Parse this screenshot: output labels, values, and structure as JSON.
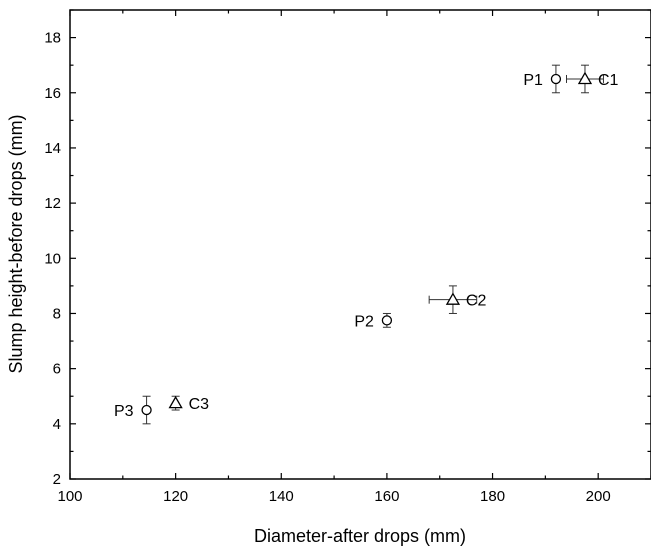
{
  "chart_data": {
    "type": "scatter",
    "xlabel": "Diameter-after drops (mm)",
    "ylabel": "Slump height-before drops (mm)",
    "xlim": [
      100,
      210
    ],
    "ylim": [
      2,
      19
    ],
    "x_ticks": [
      100,
      120,
      140,
      160,
      180,
      200
    ],
    "y_ticks": [
      2,
      4,
      6,
      8,
      10,
      12,
      14,
      16,
      18
    ],
    "grid": false,
    "points": [
      {
        "label": "P1",
        "marker": "circle",
        "x": 192,
        "y": 16.5,
        "xerr": 0,
        "yerr": 0.5,
        "label_side": "left"
      },
      {
        "label": "C1",
        "marker": "triangle",
        "x": 197.5,
        "y": 16.5,
        "xerr": 3.5,
        "yerr": 0.5,
        "label_side": "right"
      },
      {
        "label": "P2",
        "marker": "circle",
        "x": 160,
        "y": 7.75,
        "xerr": 0,
        "yerr": 0.25,
        "label_side": "left"
      },
      {
        "label": "C2",
        "marker": "triangle",
        "x": 172.5,
        "y": 8.5,
        "xerr": 4.5,
        "yerr": 0.5,
        "label_side": "right"
      },
      {
        "label": "P3",
        "marker": "circle",
        "x": 114.5,
        "y": 4.5,
        "xerr": 0,
        "yerr": 0.5,
        "label_side": "left"
      },
      {
        "label": "C3",
        "marker": "triangle",
        "x": 120,
        "y": 4.75,
        "xerr": 0,
        "yerr": 0.25,
        "label_side": "right"
      }
    ]
  }
}
